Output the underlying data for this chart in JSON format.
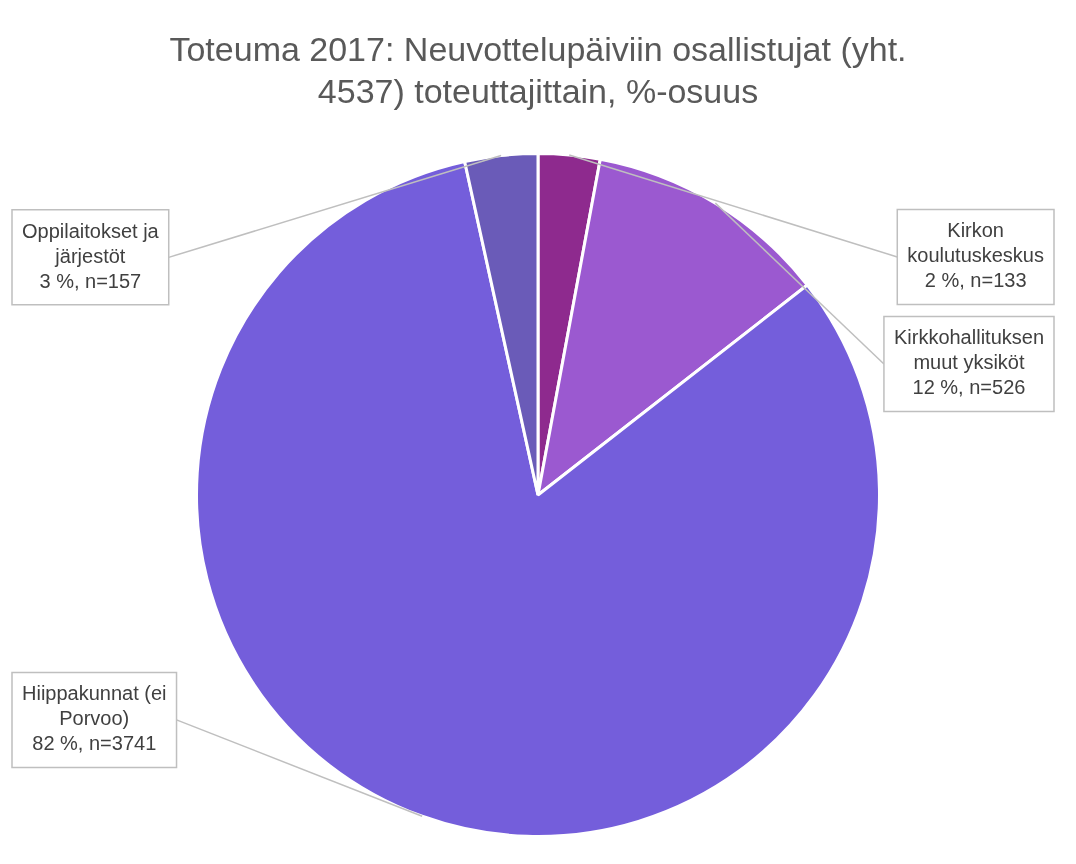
{
  "chart_data": {
    "type": "pie",
    "title": "Toteuma 2017: Neuvottelupäiviin osallistujat (yht. 4537) toteuttajittain, %-osuus",
    "categories": [
      "Kirkon koulutuskeskus",
      "Kirkkohallituksen muut yksiköt",
      "Hiippakunnat (ei Porvoo)",
      "Oppilaitokset ja järjestöt"
    ],
    "values": [
      133,
      526,
      3741,
      157
    ],
    "colors": [
      "#8e2a8e",
      "#9b59d0",
      "#745edb",
      "#6a5bb8"
    ],
    "value_labels": [
      "2 %, n=133",
      "12 %, n=526",
      "82 %, n=3741",
      "3 %, n=157"
    ],
    "legend": false
  }
}
